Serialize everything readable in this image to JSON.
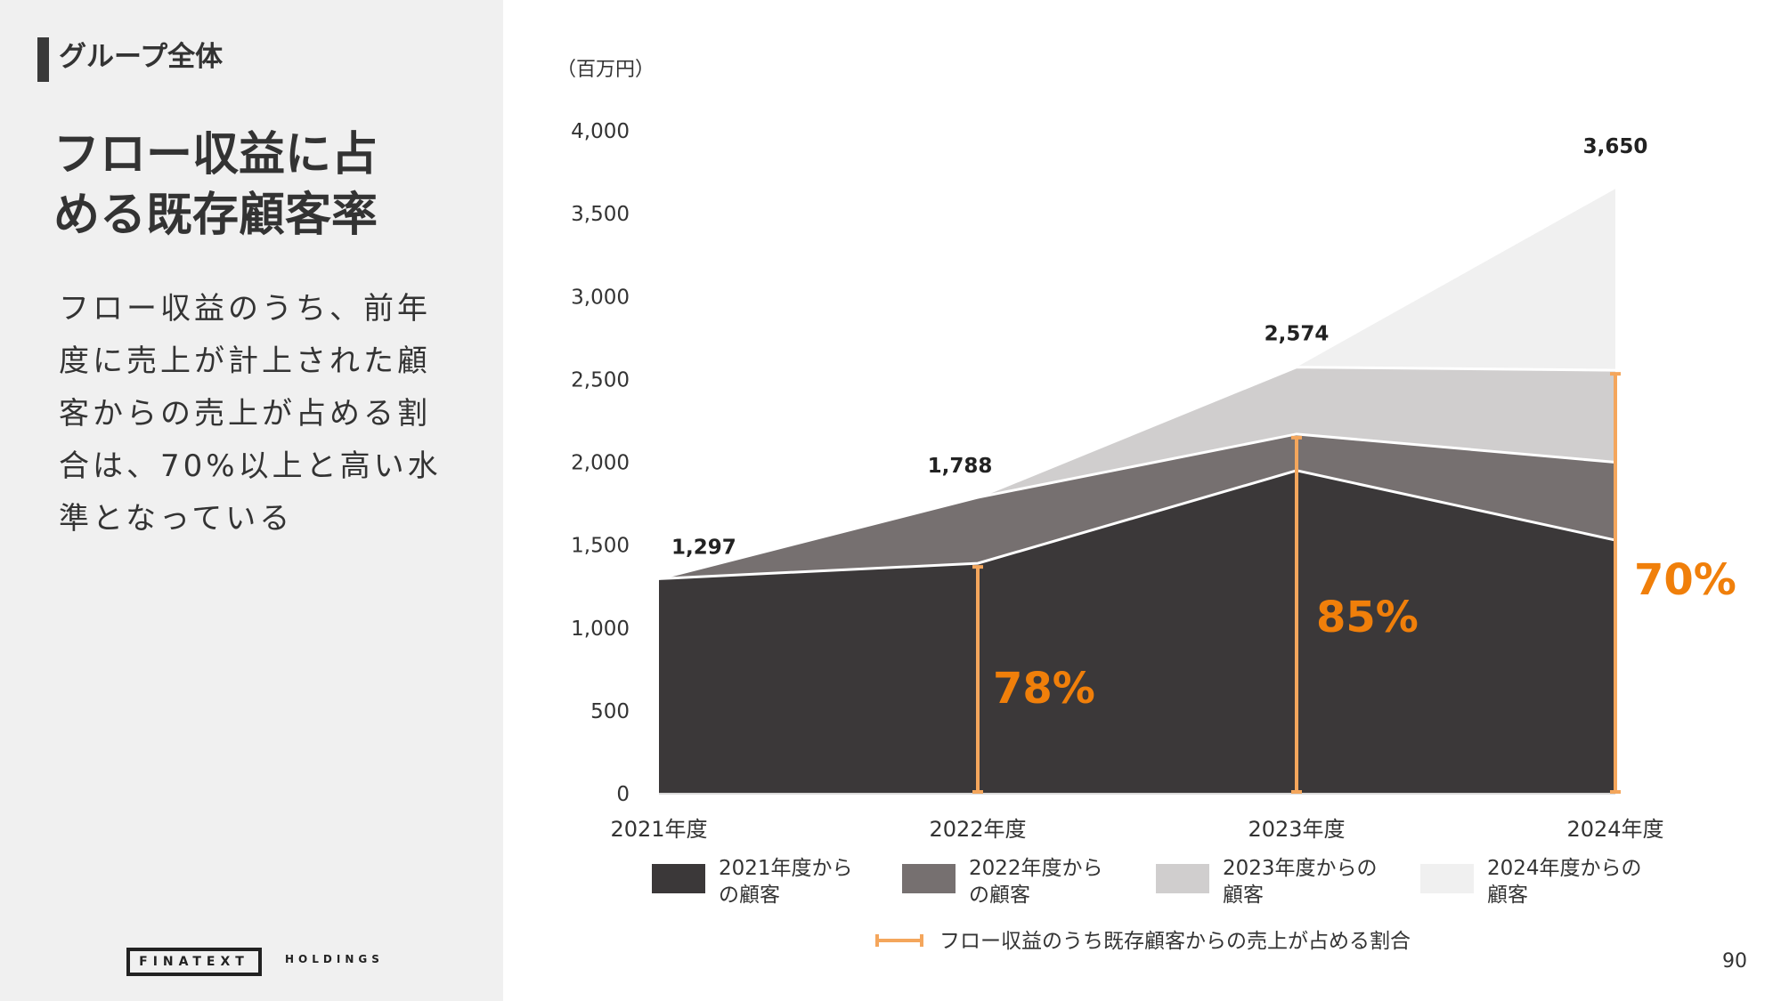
{
  "header": {
    "section_label": "グループ全体"
  },
  "title_lines": [
    "フロー収益に占",
    "める既存顧客率"
  ],
  "description_lines": [
    "フロー収益のうち、前年",
    "度に売上が計上された顧",
    "客からの売上が占める割",
    "合は、70%以上と高い水",
    "準となっている"
  ],
  "logo": {
    "main": "FINATEXT",
    "sub": "HOLDINGS"
  },
  "page_number": "90",
  "colors": {
    "cohort_2021": "#3b3839",
    "cohort_2022": "#767070",
    "cohort_2023": "#d0cece",
    "cohort_2024": "#f0f0f0",
    "ratio_marker": "#f4a65c",
    "ratio_text": "#f07f0a"
  },
  "chart_data": {
    "type": "area",
    "unit_label": "（百万円）",
    "categories": [
      "2021年度",
      "2022年度",
      "2023年度",
      "2024年度"
    ],
    "ylim": [
      0,
      4000
    ],
    "yticks": [
      "0",
      "500",
      "1,000",
      "1,500",
      "2,000",
      "2,500",
      "3,000",
      "3,500",
      "4,000"
    ],
    "series": [
      {
        "name": "2021年度からの顧客",
        "values": [
          1297,
          1390,
          1950,
          1530
        ]
      },
      {
        "name": "2022年度からの顧客",
        "values": [
          0,
          398,
          220,
          470
        ]
      },
      {
        "name": "2023年度からの顧客",
        "values": [
          0,
          0,
          404,
          555
        ]
      },
      {
        "name": "2024年度からの顧客",
        "values": [
          0,
          0,
          0,
          1095
        ]
      }
    ],
    "totals": [
      1297,
      1788,
      2574,
      3650
    ],
    "total_labels": [
      "1,297",
      "1,788",
      "2,574",
      "3,650"
    ],
    "existing_customer_ratio": {
      "name": "フロー収益のうち既存顧客からの売上が占める割合",
      "labels": [
        "",
        "78%",
        "85%",
        "70%"
      ]
    },
    "legend_entries": [
      [
        "2021年度から",
        "の顧客"
      ],
      [
        "2022年度から",
        "の顧客"
      ],
      [
        "2023年度からの",
        "顧客"
      ],
      [
        "2024年度からの",
        "顧客"
      ]
    ],
    "legend_placement": "bottom",
    "grid": false
  }
}
